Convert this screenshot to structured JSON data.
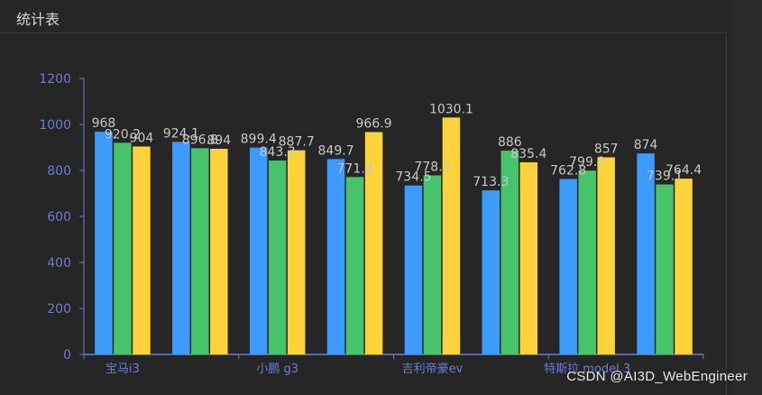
{
  "panel": {
    "title": "统计表"
  },
  "watermark": "CSDN @AI3D_WebEngineer",
  "colors": {
    "axis": "#6f7ad3",
    "tick_label": "#6f7ad3",
    "value_label": "#c8c8c8",
    "series": [
      "#3d9bfb",
      "#47c46b",
      "#fdd23a"
    ]
  },
  "chart_data": {
    "type": "bar",
    "title": "",
    "xlabel": "",
    "ylabel": "",
    "ylim": [
      0,
      1200
    ],
    "yticks": [
      0,
      200,
      400,
      600,
      800,
      1000,
      1200
    ],
    "grid": false,
    "legend": "none",
    "categories": [
      "宝马i3",
      "",
      "小鹏 g3",
      "",
      "吉利帝豪ev",
      "",
      "特斯拉 model 3",
      ""
    ],
    "series": [
      {
        "values": [
          968,
          924.1,
          899.4,
          849.7,
          734.5,
          713.3,
          762.8,
          874
        ]
      },
      {
        "values": [
          920.2,
          896.8,
          843.3,
          771.4,
          778.5,
          886,
          799.3,
          739.1
        ]
      },
      {
        "values": [
          904,
          894,
          887.7,
          966.9,
          1030.1,
          835.4,
          857,
          764.4
        ]
      }
    ]
  }
}
